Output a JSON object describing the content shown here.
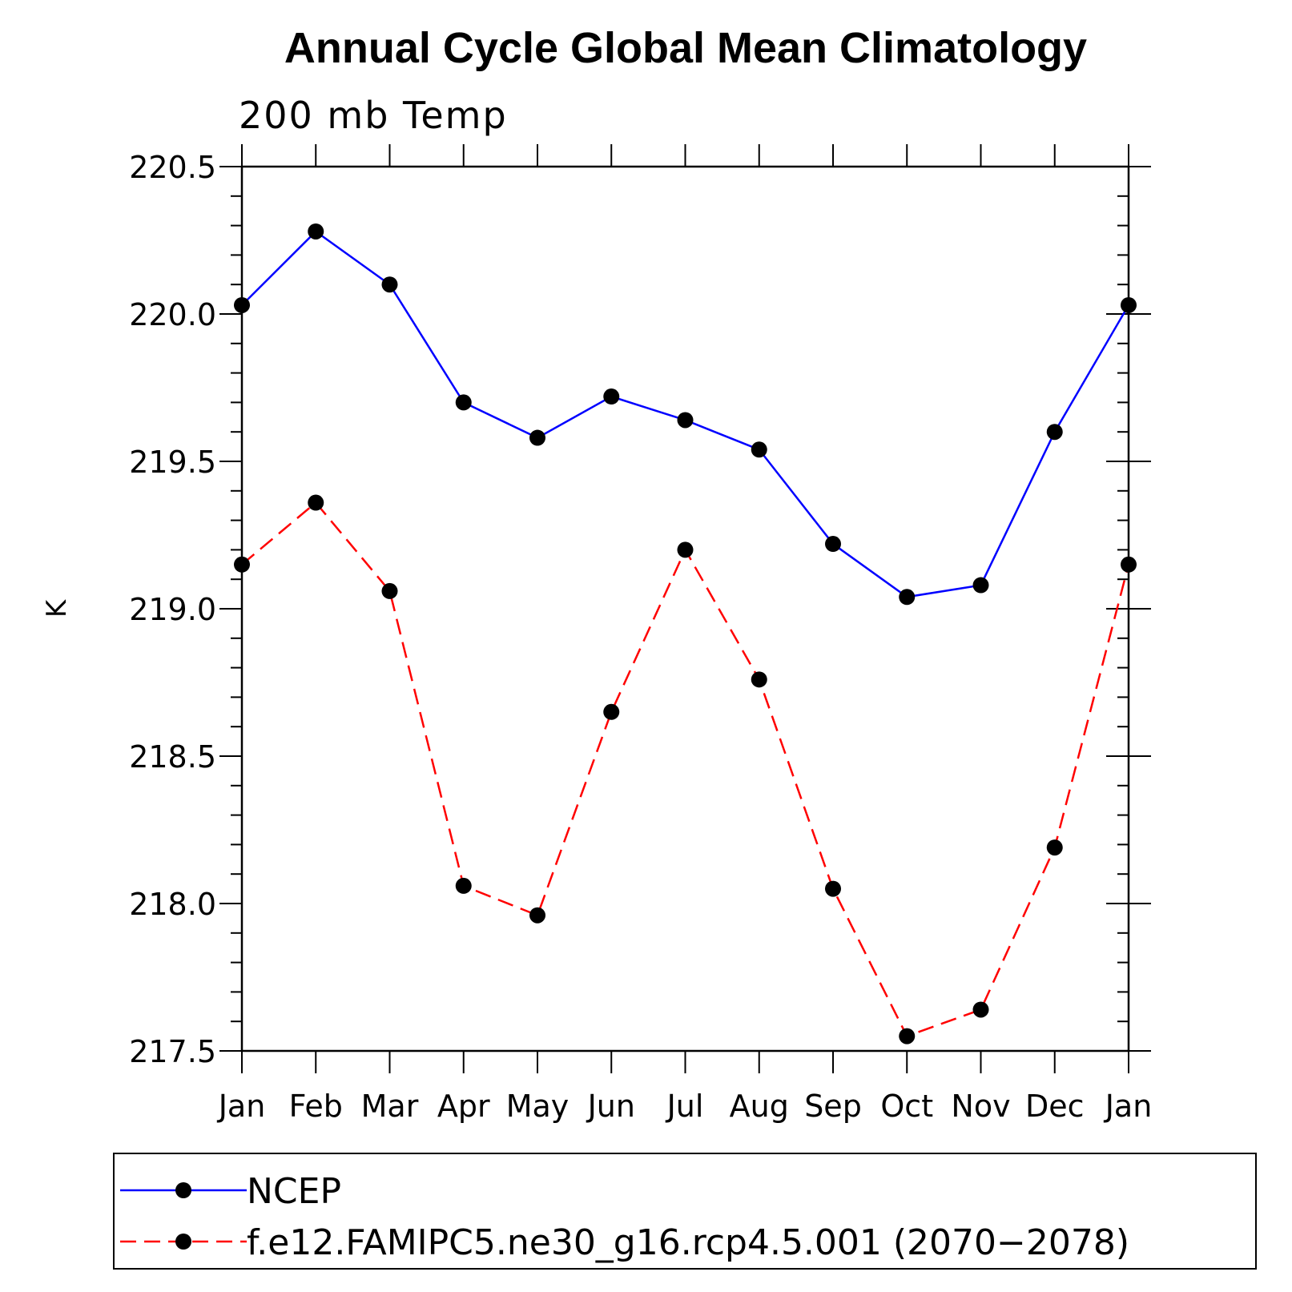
{
  "chart_data": {
    "type": "line",
    "title": "Annual Cycle Global Mean Climatology",
    "subtitle": "200  mb  Temp",
    "xlabel": "",
    "ylabel": "K",
    "categories": [
      "Jan",
      "Feb",
      "Mar",
      "Apr",
      "May",
      "Jun",
      "Jul",
      "Aug",
      "Sep",
      "Oct",
      "Nov",
      "Dec",
      "Jan"
    ],
    "ylim": [
      217.5,
      220.5
    ],
    "yticks": [
      217.5,
      218.0,
      218.5,
      219.0,
      219.5,
      220.0,
      220.5
    ],
    "ytick_labels": [
      "217.5",
      "218.0",
      "218.5",
      "219.0",
      "219.5",
      "220.0",
      "220.5"
    ],
    "grid": false,
    "legend_position": "bottom",
    "series": [
      {
        "name": "NCEP",
        "color": "#0000ff",
        "style": "solid",
        "values": [
          220.03,
          220.28,
          220.1,
          219.7,
          219.58,
          219.72,
          219.64,
          219.54,
          219.22,
          219.04,
          219.08,
          219.6,
          220.03
        ]
      },
      {
        "name": "f.e12.FAMIPC5.ne30_g16.rcp4.5.001 (2070−2078)",
        "color": "#ff0000",
        "style": "dashed",
        "values": [
          219.15,
          219.36,
          219.06,
          218.06,
          217.96,
          218.65,
          219.2,
          218.76,
          218.05,
          217.55,
          217.64,
          218.19,
          219.15
        ]
      }
    ]
  }
}
